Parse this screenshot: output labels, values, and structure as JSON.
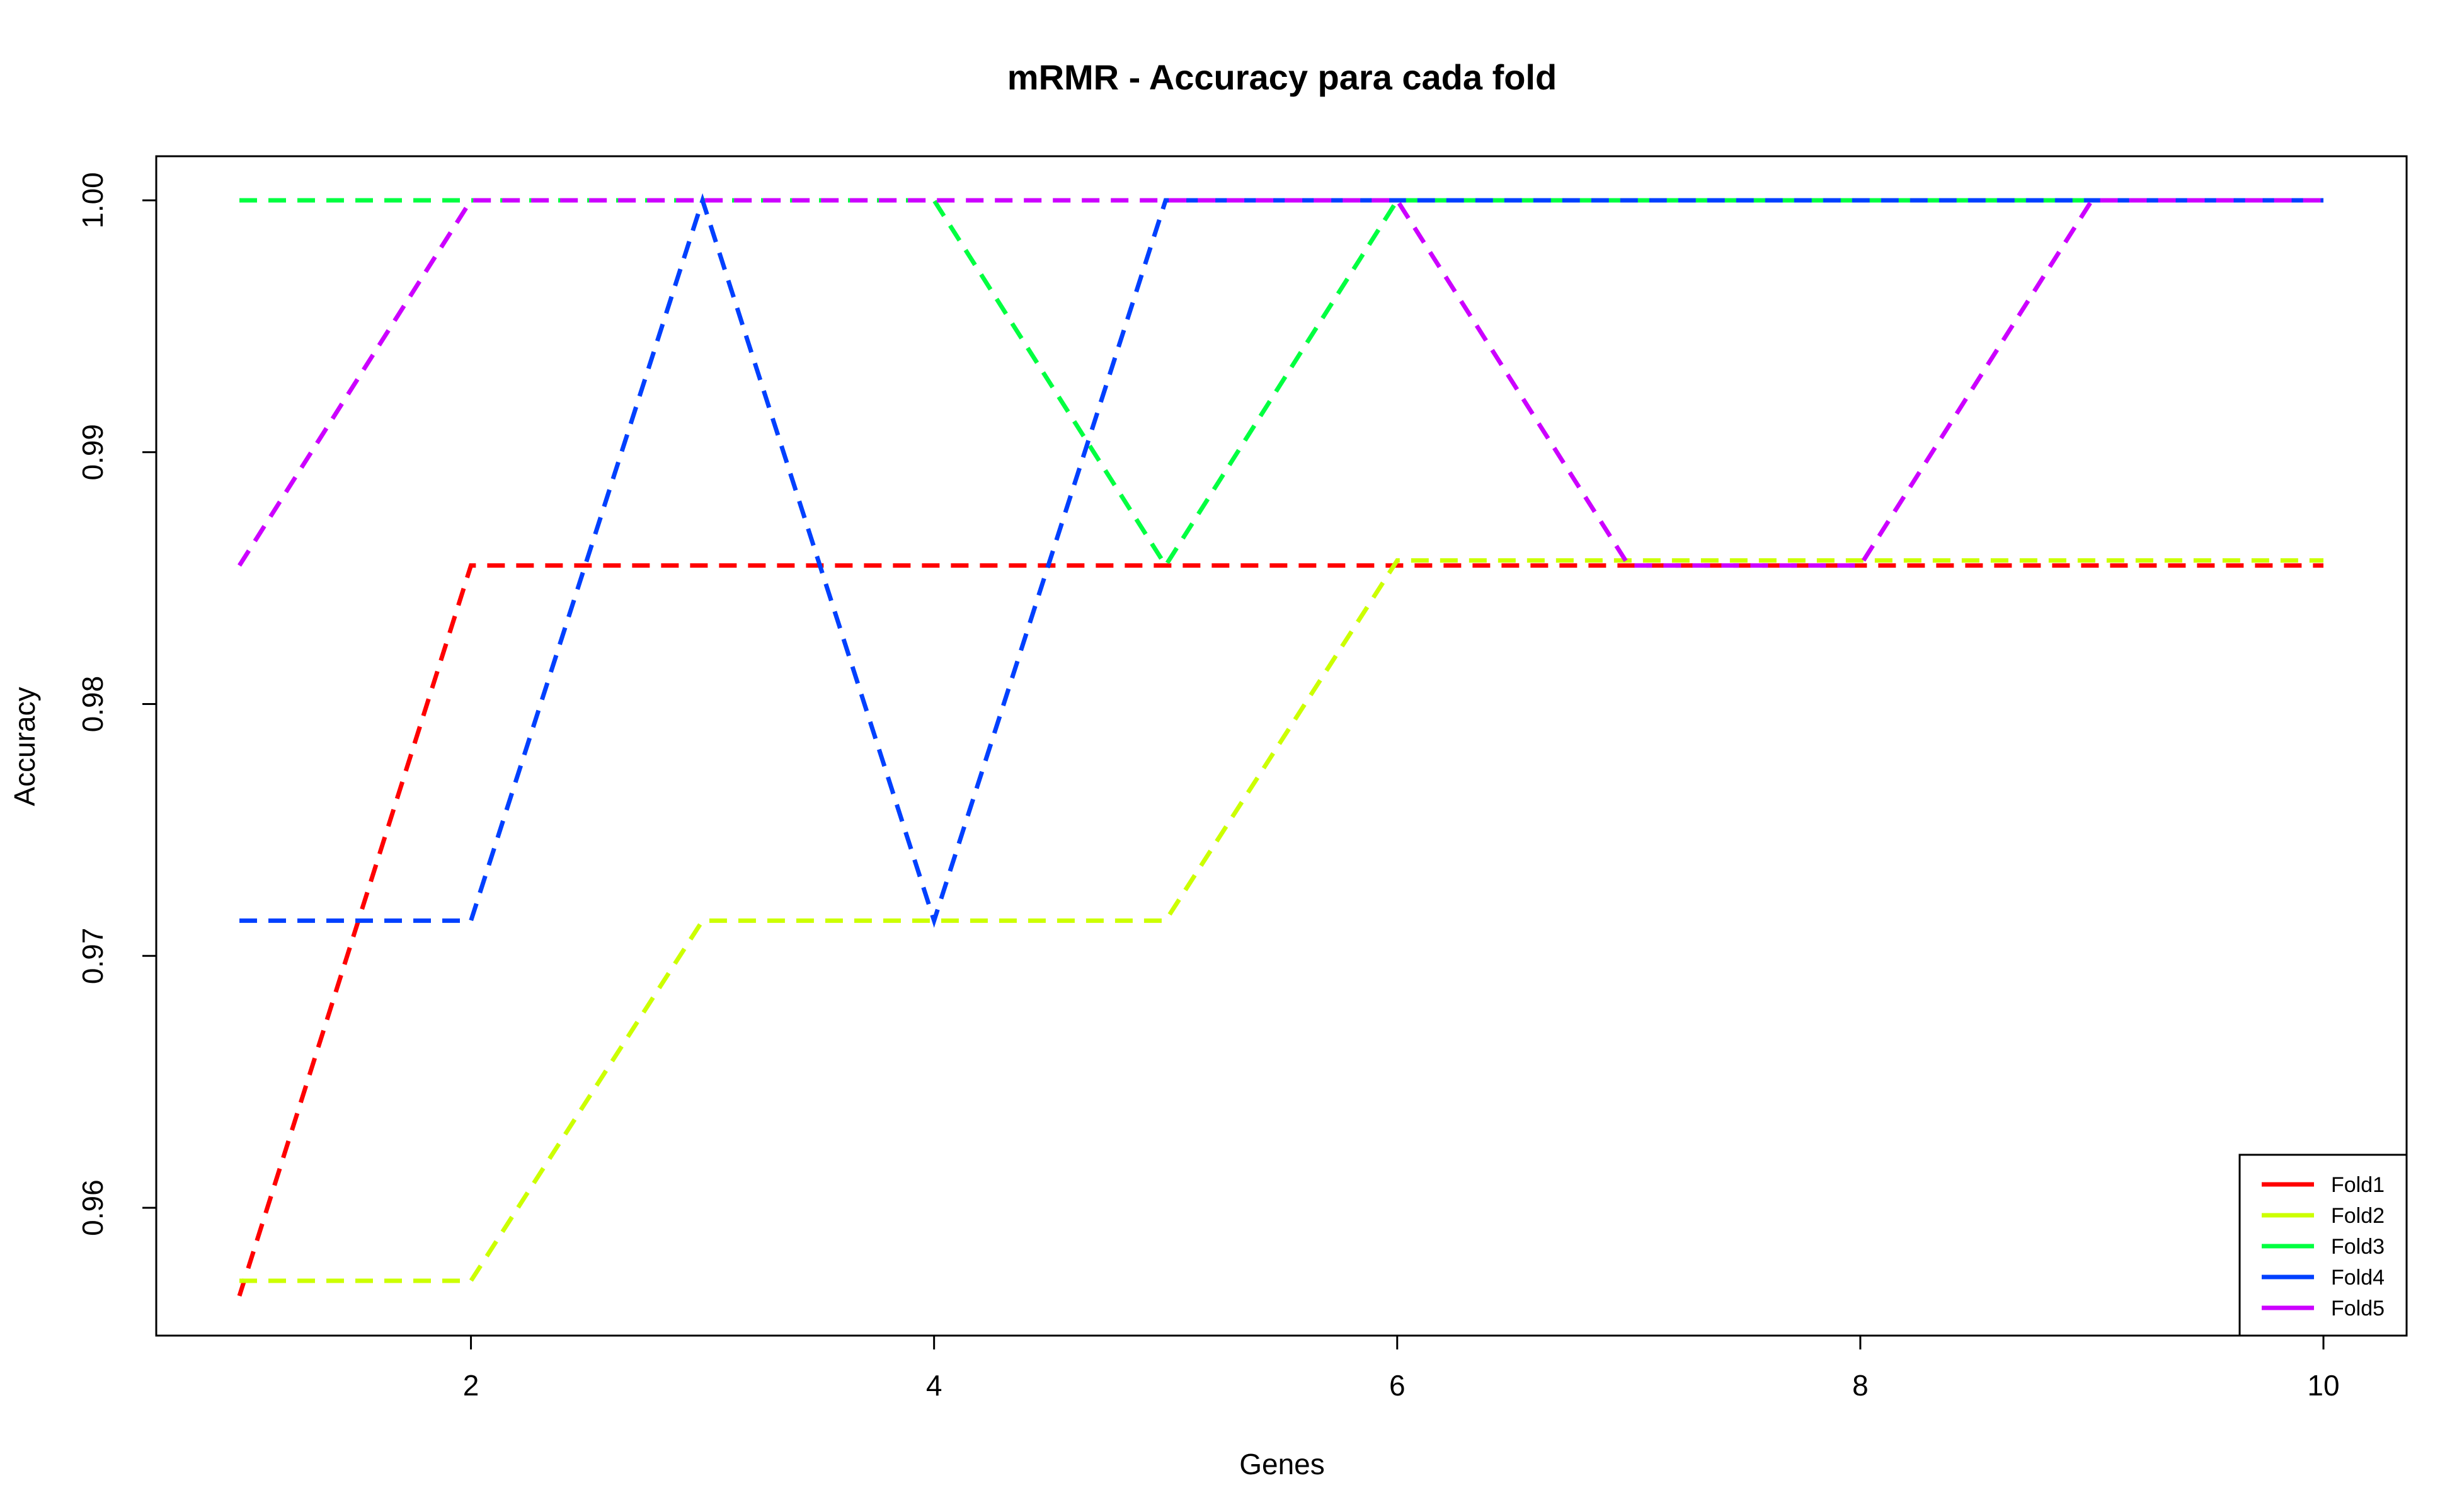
{
  "chart_data": {
    "type": "line",
    "title": "mRMR - Accuracy para cada fold",
    "xlabel": "Genes",
    "ylabel": "Accuracy",
    "x": [
      1,
      2,
      3,
      4,
      5,
      6,
      7,
      8,
      9,
      10
    ],
    "xlim": [
      1,
      10
    ],
    "ylim": [
      0.9566,
      1.0
    ],
    "x_ticks": [
      2,
      4,
      6,
      8,
      10
    ],
    "x_tick_labels": [
      "2",
      "4",
      "6",
      "8",
      "10"
    ],
    "y_ticks": [
      0.96,
      0.97,
      0.98,
      0.99,
      1.0
    ],
    "y_tick_labels": [
      "0.96",
      "0.97",
      "0.98",
      "0.99",
      "1.00"
    ],
    "line_style": "dashed",
    "grid": false,
    "legend_position": "bottom-right",
    "series": [
      {
        "name": "Fold1",
        "color": "#ff0000",
        "values": [
          0.9565,
          0.9855,
          0.9855,
          0.9855,
          0.9855,
          0.9855,
          0.9855,
          0.9855,
          0.9855,
          0.9855
        ]
      },
      {
        "name": "Fold2",
        "color": "#ccff00",
        "values": [
          0.9571,
          0.9571,
          0.9714,
          0.9714,
          0.9714,
          0.9857,
          0.9857,
          0.9857,
          0.9857,
          0.9857
        ]
      },
      {
        "name": "Fold3",
        "color": "#00ff40",
        "values": [
          1.0,
          1.0,
          1.0,
          1.0,
          0.9855,
          1.0,
          1.0,
          1.0,
          1.0,
          1.0
        ]
      },
      {
        "name": "Fold4",
        "color": "#0040ff",
        "values": [
          0.9714,
          0.9714,
          1.0,
          0.9714,
          1.0,
          1.0,
          1.0,
          1.0,
          1.0,
          1.0
        ]
      },
      {
        "name": "Fold5",
        "color": "#cc00ff",
        "values": [
          0.9855,
          1.0,
          1.0,
          1.0,
          1.0,
          1.0,
          0.9855,
          0.9855,
          1.0,
          1.0
        ]
      }
    ]
  }
}
